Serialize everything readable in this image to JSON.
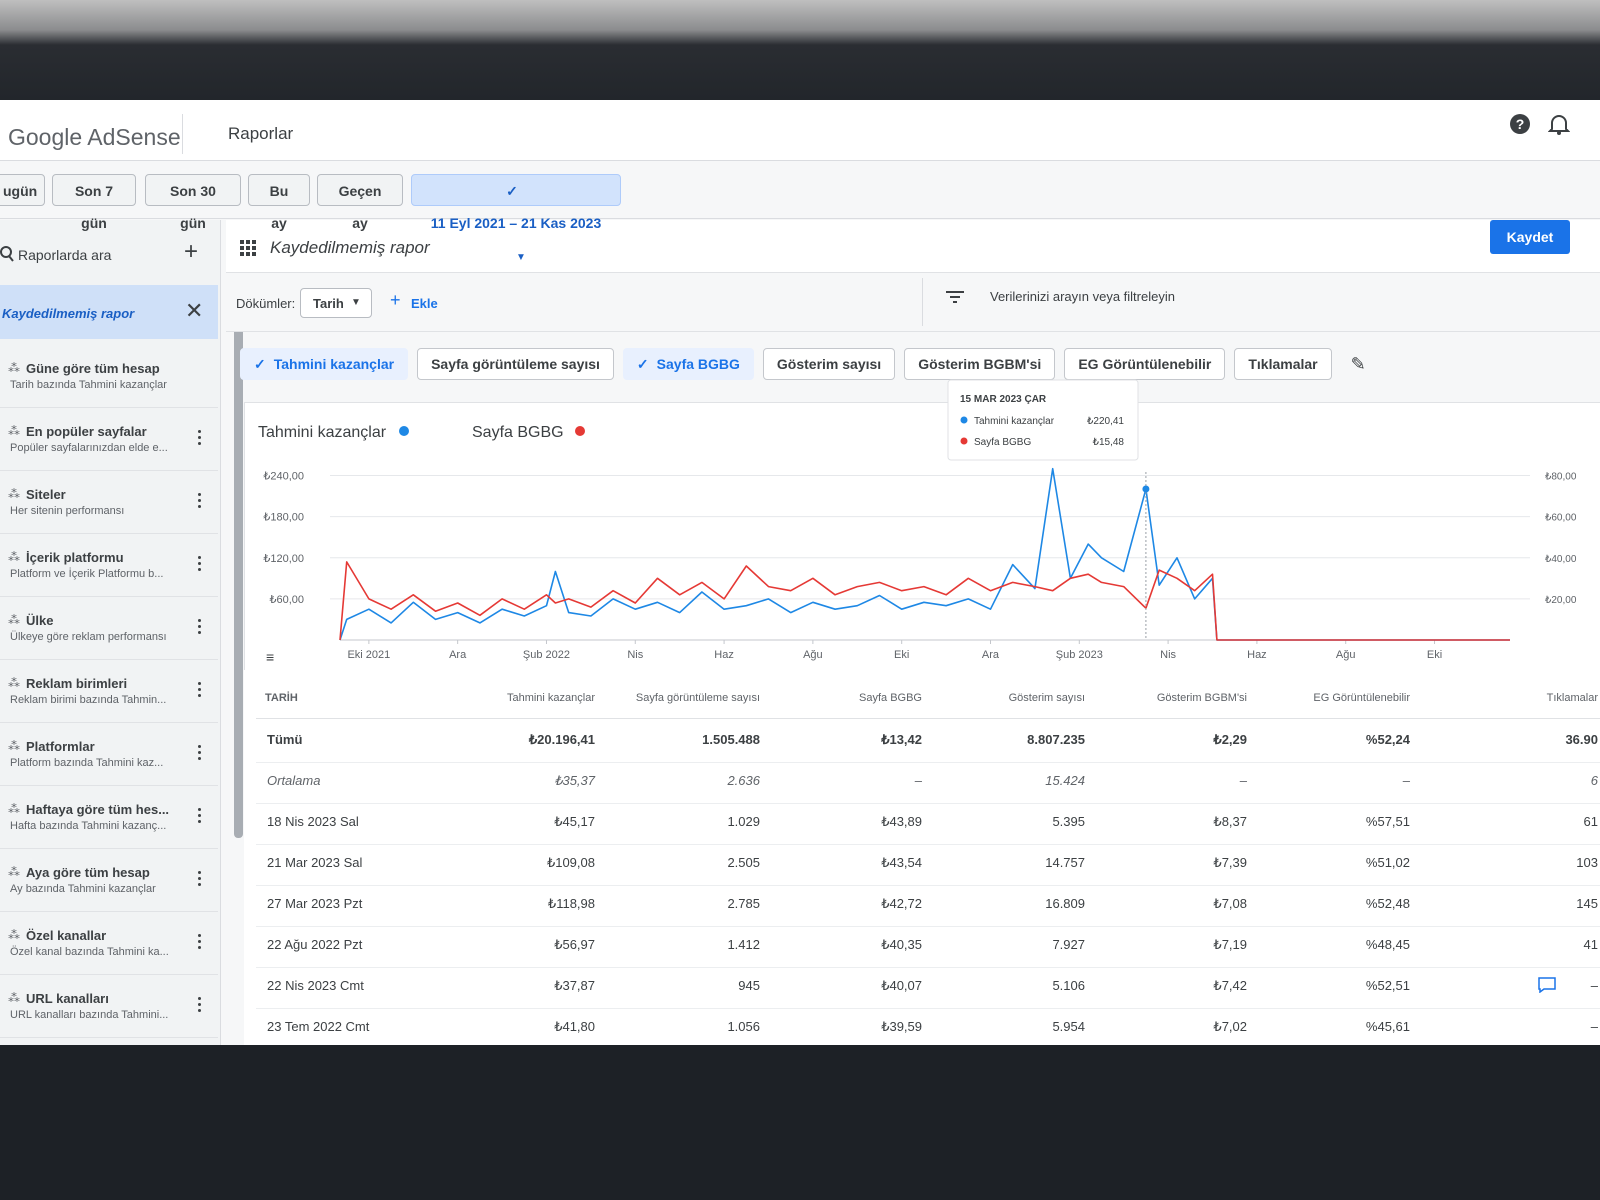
{
  "header": {
    "brand": "Google AdSense",
    "section": "Raporlar"
  },
  "date_chips": [
    {
      "label": "ugün",
      "selected": false
    },
    {
      "label": "Son 7 gün",
      "selected": false
    },
    {
      "label": "Son 30 gün",
      "selected": false
    },
    {
      "label": "Bu ay",
      "selected": false
    },
    {
      "label": "Geçen ay",
      "selected": false
    },
    {
      "label": "11 Eyl 2021 – 21 Kas 2023",
      "selected": true
    }
  ],
  "sidebar": {
    "search": "Raporlarda ara",
    "active": "Kaydedilmemiş rapor",
    "items": [
      {
        "title": "Güne göre tüm hesap",
        "subtitle": "Tarih bazında Tahmini kazançlar"
      },
      {
        "title": "En popüler sayfalar",
        "subtitle": "Popüler sayfalarınızdan elde e..."
      },
      {
        "title": "Siteler",
        "subtitle": "Her sitenin performansı"
      },
      {
        "title": "İçerik platformu",
        "subtitle": "Platform ve İçerik Platformu b..."
      },
      {
        "title": "Ülke",
        "subtitle": "Ülkeye göre reklam performansı"
      },
      {
        "title": "Reklam birimleri",
        "subtitle": "Reklam birimi bazında Tahmin..."
      },
      {
        "title": "Platformlar",
        "subtitle": "Platform bazında Tahmini kaz..."
      },
      {
        "title": "Haftaya göre tüm hes...",
        "subtitle": "Hafta bazında Tahmini kazanç..."
      },
      {
        "title": "Aya göre tüm hesap",
        "subtitle": "Ay bazında Tahmini kazançlar"
      },
      {
        "title": "Özel kanallar",
        "subtitle": "Özel kanal bazında Tahmini ka..."
      },
      {
        "title": "URL kanalları",
        "subtitle": "URL kanalları bazında Tahmini..."
      }
    ]
  },
  "report": {
    "title": "Kaydedilmemiş rapor",
    "save": "Kaydet",
    "breakdowns_label": "Dökümler:",
    "breakdown": "Tarih",
    "add": "Ekle",
    "filter_placeholder": "Verilerinizi arayın veya filtreleyin"
  },
  "metric_chips": [
    {
      "label": "Tahmini kazançlar",
      "selected": true
    },
    {
      "label": "Sayfa görüntüleme sayısı",
      "selected": false
    },
    {
      "label": "Sayfa BGBG",
      "selected": true
    },
    {
      "label": "Gösterim sayısı",
      "selected": false
    },
    {
      "label": "Gösterim BGBM'si",
      "selected": false
    },
    {
      "label": "EG Görüntülenebilir",
      "selected": false
    },
    {
      "label": "Tıklamalar",
      "selected": false
    }
  ],
  "chart": {
    "type": "line",
    "x": [
      0.35,
      0.5,
      1,
      1.5,
      2,
      2.5,
      3,
      3.5,
      4,
      4.5,
      5,
      5.2,
      5.5,
      6,
      6.5,
      7,
      7.5,
      8,
      8.5,
      9,
      9.5,
      10,
      10.5,
      11,
      11.5,
      12,
      12.5,
      13,
      13.5,
      14,
      14.5,
      15,
      15.5,
      16,
      16.4,
      16.8,
      17.2,
      17.5,
      18,
      18.5,
      18.8,
      19.2,
      19.6,
      20,
      20.1,
      26.7
    ],
    "series": [
      {
        "name": "Tahmini kazançlar",
        "color": "#1e88e5",
        "values": [
          0,
          30,
          45,
          25,
          55,
          30,
          40,
          25,
          45,
          35,
          50,
          100,
          40,
          35,
          60,
          45,
          55,
          40,
          70,
          45,
          50,
          60,
          40,
          55,
          45,
          50,
          65,
          45,
          55,
          50,
          60,
          45,
          110,
          75,
          250,
          90,
          140,
          120,
          100,
          220.41,
          80,
          120,
          60,
          90,
          0,
          0
        ]
      },
      {
        "name": "Sayfa BGBG",
        "color": "#e53935",
        "axis": "y2",
        "values": [
          0,
          38,
          20,
          15,
          22,
          14,
          18,
          12,
          20,
          15,
          22,
          18,
          20,
          16,
          24,
          18,
          30,
          22,
          28,
          20,
          36,
          26,
          24,
          30,
          22,
          26,
          28,
          24,
          26,
          22,
          30,
          24,
          28,
          26,
          24,
          30,
          32,
          28,
          26,
          15.48,
          34,
          30,
          24,
          32,
          0,
          0
        ]
      }
    ],
    "xlim": [
      0.35,
      26.7
    ],
    "xticks": [
      {
        "value": 1,
        "label": "Eki 2021"
      },
      {
        "value": 3,
        "label": "Ara"
      },
      {
        "value": 5,
        "label": "Şub 2022"
      },
      {
        "value": 7,
        "label": "Nis"
      },
      {
        "value": 9,
        "label": "Haz"
      },
      {
        "value": 11,
        "label": "Ağu"
      },
      {
        "value": 13,
        "label": "Eki"
      },
      {
        "value": 15,
        "label": "Ara"
      },
      {
        "value": 17,
        "label": "Şub 2023"
      },
      {
        "value": 19,
        "label": "Nis"
      },
      {
        "value": 21,
        "label": "Haz"
      },
      {
        "value": 23,
        "label": "Ağu"
      },
      {
        "value": 25,
        "label": "Eki"
      }
    ],
    "ylim": [
      0,
      270
    ],
    "yticks": [
      {
        "value": 60,
        "label": "₺60,00"
      },
      {
        "value": 120,
        "label": "₺120,00"
      },
      {
        "value": 180,
        "label": "₺180,00"
      },
      {
        "value": 240,
        "label": "₺240,00"
      }
    ],
    "y2lim": [
      0,
      90
    ],
    "y2ticks": [
      {
        "value": 20,
        "label": "₺20,00"
      },
      {
        "value": 40,
        "label": "₺40,00"
      },
      {
        "value": 60,
        "label": "₺60,00"
      },
      {
        "value": 80,
        "label": "₺80,00"
      }
    ],
    "grid": true,
    "tooltip": {
      "date": "15 MAR 2023 ÇAR",
      "x": 18.5,
      "values": [
        "₺220,41",
        "₺15,48"
      ]
    }
  },
  "table": {
    "columns": [
      "TARİH",
      "Tahmini kazançlar",
      "Sayfa görüntüleme sayısı",
      "Sayfa BGBG",
      "Gösterim sayısı",
      "Gösterim BGBM'si",
      "EG Görüntülenebilir",
      "Tıklamalar"
    ],
    "rows": [
      [
        "Tümü",
        "₺20.196,41",
        "1.505.488",
        "₺13,42",
        "8.807.235",
        "₺2,29",
        "%52,24",
        "36.90"
      ],
      [
        "Ortalama",
        "₺35,37",
        "2.636",
        "–",
        "15.424",
        "–",
        "–",
        "6"
      ],
      [
        "18 Nis 2023 Sal",
        "₺45,17",
        "1.029",
        "₺43,89",
        "5.395",
        "₺8,37",
        "%57,51",
        "61"
      ],
      [
        "21 Mar 2023 Sal",
        "₺109,08",
        "2.505",
        "₺43,54",
        "14.757",
        "₺7,39",
        "%51,02",
        "103"
      ],
      [
        "27 Mar 2023 Pzt",
        "₺118,98",
        "2.785",
        "₺42,72",
        "16.809",
        "₺7,08",
        "%52,48",
        "145"
      ],
      [
        "22 Ağu 2022 Pzt",
        "₺56,97",
        "1.412",
        "₺40,35",
        "7.927",
        "₺7,19",
        "%48,45",
        "41"
      ],
      [
        "22 Nis 2023 Cmt",
        "₺37,87",
        "945",
        "₺40,07",
        "5.106",
        "₺7,42",
        "%52,51",
        "–"
      ],
      [
        "23 Tem 2022 Cmt",
        "₺41,80",
        "1.056",
        "₺39,59",
        "5.954",
        "₺7,02",
        "%45,61",
        "–"
      ]
    ]
  }
}
